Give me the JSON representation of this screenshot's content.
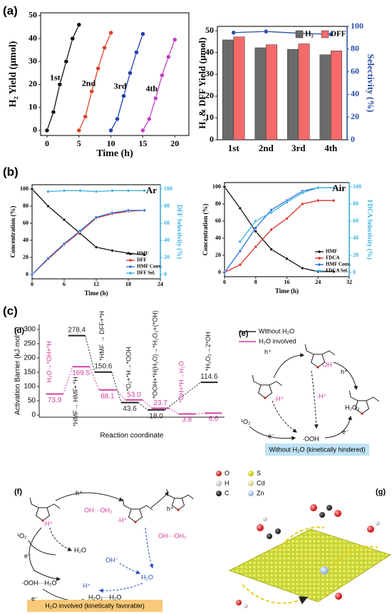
{
  "panel_labels": [
    "(a)",
    "(b)",
    "(c)",
    "(d)",
    "(e)",
    "(f)",
    "(g)"
  ],
  "chart_data": [
    {
      "type": "line",
      "xlabel": "Time (h)",
      "ylabel": "H₂ Yield (μmol)",
      "xlim": [
        -1,
        22.2
      ],
      "xticks": [
        0,
        5,
        10,
        15,
        20
      ],
      "ylim": [
        -2.2,
        51.2
      ],
      "yticks": [
        0,
        10,
        20,
        30,
        40,
        50
      ],
      "legend": "inline",
      "series": [
        {
          "name": "1st",
          "color": "#111111",
          "x": [
            0,
            1,
            2,
            3,
            4,
            5
          ],
          "values": [
            0,
            8,
            20,
            30,
            40,
            46
          ]
        },
        {
          "name": "2nd",
          "color": "#d9442b",
          "x": [
            5,
            6,
            7,
            8,
            9,
            10
          ],
          "values": [
            0,
            6,
            17,
            27,
            36,
            42.5
          ]
        },
        {
          "name": "3rd",
          "color": "#1f3fb5",
          "x": [
            10,
            11,
            12,
            13,
            14,
            15
          ],
          "values": [
            0,
            5,
            15,
            25,
            34,
            42
          ]
        },
        {
          "name": "4th",
          "color": "#c040c0",
          "x": [
            15,
            16,
            17,
            18,
            19,
            20
          ],
          "values": [
            0,
            5,
            14,
            24,
            32,
            39.5
          ]
        }
      ]
    },
    {
      "type": "bar",
      "ylabel": "H₂ & DFF Yield (μmol)",
      "y2label": "Selectivity (%)",
      "y2color": "#2a4fa8",
      "categories": [
        "1st",
        "2nd",
        "3rd",
        "4th"
      ],
      "ylim": [
        0,
        52
      ],
      "yticks": [
        0,
        10,
        20,
        30,
        40,
        50
      ],
      "y2lim": [
        0,
        100
      ],
      "y2ticks": [
        0,
        20,
        40,
        60,
        80,
        100
      ],
      "legend": "upper right",
      "series": [
        {
          "name": "H₂",
          "color": "#6b6b6b",
          "values": [
            45.8,
            42.2,
            41.5,
            39
          ]
        },
        {
          "name": "DFF",
          "color": "#f46a6a",
          "values": [
            47.2,
            43.6,
            44,
            40.8
          ]
        },
        {
          "color": "#2a4fa8",
          "axis": "y2",
          "values": [
            94.5,
            95.5,
            94,
            93
          ]
        }
      ]
    },
    {
      "type": "line",
      "title": "Ar",
      "xlabel": "Time (h)",
      "ylabel": "Concentration (%)",
      "y2label": "DFF Selectivity (%)",
      "y2color": "#3ab0e0",
      "xlim": [
        0,
        24
      ],
      "xticks": [
        0,
        6,
        12,
        18,
        24
      ],
      "ylim": [
        -5,
        105
      ],
      "yticks": [
        0,
        20,
        40,
        60,
        80,
        100
      ],
      "y2lim": [
        -5,
        105
      ],
      "y2ticks": [
        0,
        20,
        40,
        60,
        80,
        100
      ],
      "legend": "lower right",
      "series": [
        {
          "name": "HMF",
          "color": "#111111",
          "x": [
            0,
            3,
            6,
            9,
            12,
            15,
            18,
            21
          ],
          "values": [
            100,
            80,
            64,
            48,
            32,
            28,
            25,
            23
          ]
        },
        {
          "name": "DFF",
          "color": "#d9302b",
          "x": [
            0,
            3,
            6,
            9,
            12,
            15,
            18,
            21
          ],
          "values": [
            0,
            18,
            35,
            50,
            66,
            71,
            74,
            75
          ]
        },
        {
          "name": "HMF Conv.",
          "color": "#2b6fd9",
          "x": [
            0,
            3,
            6,
            9,
            12,
            15,
            18,
            21
          ],
          "values": [
            0,
            19,
            36,
            51,
            67,
            72,
            75,
            75
          ]
        },
        {
          "name": "DFF Sel.",
          "color": "#3ab0e0",
          "axis": "y2",
          "x": [
            3,
            6,
            9,
            12,
            15,
            18,
            21
          ],
          "values": [
            97,
            98,
            98,
            97,
            98,
            98,
            98
          ]
        }
      ]
    },
    {
      "type": "line",
      "title": "Air",
      "xlabel": "Time (h)",
      "ylabel": "Concentration (%)",
      "y2label": "FDCA Selectivity (%)",
      "y2color": "#3ab0e0",
      "xlim": [
        0,
        32
      ],
      "xticks": [
        0,
        8,
        16,
        24,
        32
      ],
      "ylim": [
        -5,
        105
      ],
      "yticks": [
        0,
        20,
        40,
        60,
        80,
        100
      ],
      "y2lim": [
        -5,
        105
      ],
      "y2ticks": [
        0,
        20,
        40,
        60,
        80,
        100
      ],
      "legend": "lower right",
      "series": [
        {
          "name": "HMF",
          "color": "#111111",
          "x": [
            0,
            4,
            8,
            12,
            16,
            20,
            24,
            28
          ],
          "values": [
            100,
            75,
            48,
            27,
            16,
            5,
            1,
            1
          ]
        },
        {
          "name": "FDCA",
          "color": "#d9302b",
          "x": [
            0,
            4,
            8,
            12,
            16,
            20,
            24,
            28
          ],
          "values": [
            0,
            9,
            30,
            50,
            63,
            80,
            84,
            84
          ]
        },
        {
          "name": "HMF Conv.",
          "color": "#2b6fd9",
          "x": [
            0,
            4,
            8,
            12,
            16,
            20,
            24,
            28
          ],
          "values": [
            0,
            25,
            52,
            73,
            84,
            95,
            99,
            99
          ]
        },
        {
          "name": "FDCA Sel.",
          "color": "#3ab0e0",
          "axis": "y2",
          "x": [
            4,
            8,
            12,
            16,
            20,
            24,
            28
          ],
          "values": [
            36,
            60,
            70,
            82,
            93,
            99,
            99
          ]
        }
      ]
    },
    {
      "type": "level",
      "xlabel": "Reaction coordinate",
      "ylabel": "Activation Barrier (kJ·mol⁻¹)",
      "categories": [
        null,
        null,
        null,
        null,
        null,
        null,
        null
      ],
      "ylim": [
        -7.5,
        317.5
      ],
      "yticks": [
        0,
        50,
        100,
        150,
        200,
        250,
        300
      ],
      "legend": "right",
      "series": [
        {
          "name": "Without H₂O",
          "color": "#222222",
          "values": [
            null,
            278.4,
            150.6,
            43.6,
            18.0,
            null,
            114.6
          ],
          "value_labels": [
            null,
            "278.4",
            "150.6",
            "43.6",
            "18.0",
            null,
            "114.6"
          ],
          "step_labels": [
            null,
            "*HMF→ HMF• *H",
            "*HMF → DFF+*H",
            "*O₂+*H→*OOH",
            "*OOH+*H(H₂O)→*H₂O₂+(*OH)",
            null,
            "*H₂O₂→2*OH"
          ]
        },
        {
          "name": "H₂O involved",
          "color": "#d040a0",
          "values": [
            73.9,
            169.5,
            88.1,
            53.0,
            23.7,
            3.8,
            6.6
          ],
          "value_labels": [
            "73.9",
            "169.5",
            "88.1",
            "53.0",
            "23.7",
            "3.8",
            "6.6"
          ],
          "step_labels": [
            "H₂O→*OH+*H",
            null,
            null,
            null,
            null,
            "*OH+*H→H₂O",
            null
          ]
        }
      ]
    }
  ],
  "panel_e": {
    "labels": [
      "h⁺",
      "OH",
      "h⁺",
      "·H⁺",
      "·H⁺",
      "¹O₂",
      "e⁻",
      "·OOH",
      "e⁻",
      "H₂O₂"
    ],
    "caption": "Without H₂O (kinetically hindered)"
  },
  "panel_f": {
    "labels": [
      "h⁺",
      "OH···OH₂",
      "·H⁺",
      "h⁺",
      "¹O₂",
      "e⁻",
      "H₂O",
      "·H⁺",
      "OH⁻",
      "OH···OH₂",
      "H₂O",
      "·OOH···H₂O",
      "H⁺",
      "e⁻",
      "H₂O₂···H₂O"
    ],
    "caption": "H₂O involved (kinetically favorable)"
  },
  "panel_g": {
    "legend": [
      "O",
      "S",
      "H",
      "Cd",
      "C",
      "Zn"
    ]
  }
}
